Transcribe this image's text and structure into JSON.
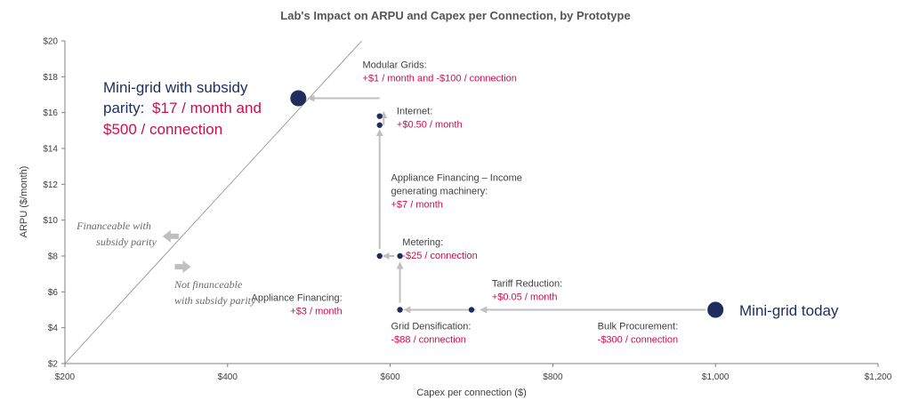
{
  "chart_data": {
    "type": "scatter",
    "title": "Lab's Impact on ARPU and Capex per Connection, by Prototype",
    "xlabel": "Capex per connection ($)",
    "ylabel": "ARPU ($/month)",
    "xlim": [
      200,
      1200
    ],
    "ylim": [
      2,
      20
    ],
    "xticks": [
      200,
      400,
      600,
      800,
      1000,
      1200
    ],
    "xtick_labels": [
      "$200",
      "$400",
      "$600",
      "$800",
      "$1,000",
      "$1,200"
    ],
    "yticks": [
      2,
      4,
      6,
      8,
      10,
      12,
      14,
      16,
      18,
      20
    ],
    "ytick_labels": [
      "$2",
      "$4",
      "$6",
      "$8",
      "$10",
      "$12",
      "$14",
      "$16",
      "$18",
      "$20"
    ],
    "grid": false,
    "parity_line": {
      "from": [
        200,
        2
      ],
      "to": [
        565,
        20
      ]
    },
    "points": [
      {
        "id": "today",
        "x": 1000,
        "y": 5,
        "size": "large"
      },
      {
        "id": "grid-densification",
        "x": 700,
        "y": 5,
        "size": "small"
      },
      {
        "id": "appliance-financing-start",
        "x": 612,
        "y": 5,
        "size": "small"
      },
      {
        "id": "metering-start",
        "x": 612,
        "y": 8,
        "size": "small"
      },
      {
        "id": "metering-end",
        "x": 587,
        "y": 8,
        "size": "small"
      },
      {
        "id": "internet-start",
        "x": 587,
        "y": 15.3,
        "size": "small"
      },
      {
        "id": "internet-end",
        "x": 587,
        "y": 15.8,
        "size": "small"
      },
      {
        "id": "parity",
        "x": 487,
        "y": 16.8,
        "size": "large"
      }
    ],
    "arrows": [
      {
        "from": [
          988,
          5
        ],
        "to": [
          712,
          5
        ]
      },
      {
        "from": [
          705,
          5
        ],
        "to": [
          618,
          5
        ]
      },
      {
        "from": [
          612,
          5.4
        ],
        "to": [
          612,
          7.6
        ]
      },
      {
        "from": [
          605,
          8
        ],
        "to": [
          592,
          8
        ]
      },
      {
        "from": [
          587,
          8.4
        ],
        "to": [
          587,
          15
        ]
      },
      {
        "from": [
          592,
          15.3
        ],
        "to": [
          592,
          16
        ]
      },
      {
        "from": [
          587,
          16.8
        ],
        "to": [
          500,
          16.8
        ]
      }
    ],
    "region_arrows": [
      {
        "direction": "left",
        "at": [
          330,
          9.1
        ]
      },
      {
        "direction": "right",
        "at": [
          345,
          7.4
        ]
      }
    ],
    "annotations": [
      {
        "id": "modular",
        "anchor": [
          566,
          18.5
        ],
        "name": "Modular Grids:",
        "delta": "+$1 / month and -$100 / connection"
      },
      {
        "id": "internet",
        "anchor": [
          608,
          15.9
        ],
        "name": "Internet:",
        "delta": "+$0.50 / month"
      },
      {
        "id": "appliance-income",
        "anchor": [
          601,
          12.2
        ],
        "name": "Appliance Financing – Income",
        "name2": "generating machinery:",
        "delta": "+$7 / month"
      },
      {
        "id": "metering",
        "anchor": [
          615,
          8.6
        ],
        "name": "Metering:",
        "delta": "-$25 / connection"
      },
      {
        "id": "appliance",
        "anchor": [
          541,
          5.5
        ],
        "name": "Appliance Financing:",
        "delta": "+$3 / month",
        "align": "end"
      },
      {
        "id": "tariff",
        "anchor": [
          725,
          6.3
        ],
        "name": "Tariff Reduction:",
        "delta": "+$0.05 / month"
      },
      {
        "id": "grid",
        "anchor": [
          601,
          3.9
        ],
        "name": "Grid Densification:",
        "delta": "-$88 / connection"
      },
      {
        "id": "bulk",
        "anchor": [
          855,
          3.9
        ],
        "name": "Bulk Procurement:",
        "delta": "-$300 / connection"
      }
    ],
    "callouts": {
      "today": "Mini-grid today",
      "parity_line1": "Mini-grid with subsidy",
      "parity_line2_prefix": "parity: ",
      "parity_line2_red": "$17 / month and",
      "parity_line3_red": "$500 / connection"
    },
    "region_labels": {
      "financeable_1": "Financeable with",
      "financeable_2": "subsidy parity",
      "not_financeable_1": "Not financeable",
      "not_financeable_2": "with subsidy parity"
    },
    "colors": {
      "navy": "#1f2d5c",
      "red": "#c8104e",
      "arrow": "#bfbfbf",
      "axis": "#808080"
    }
  }
}
